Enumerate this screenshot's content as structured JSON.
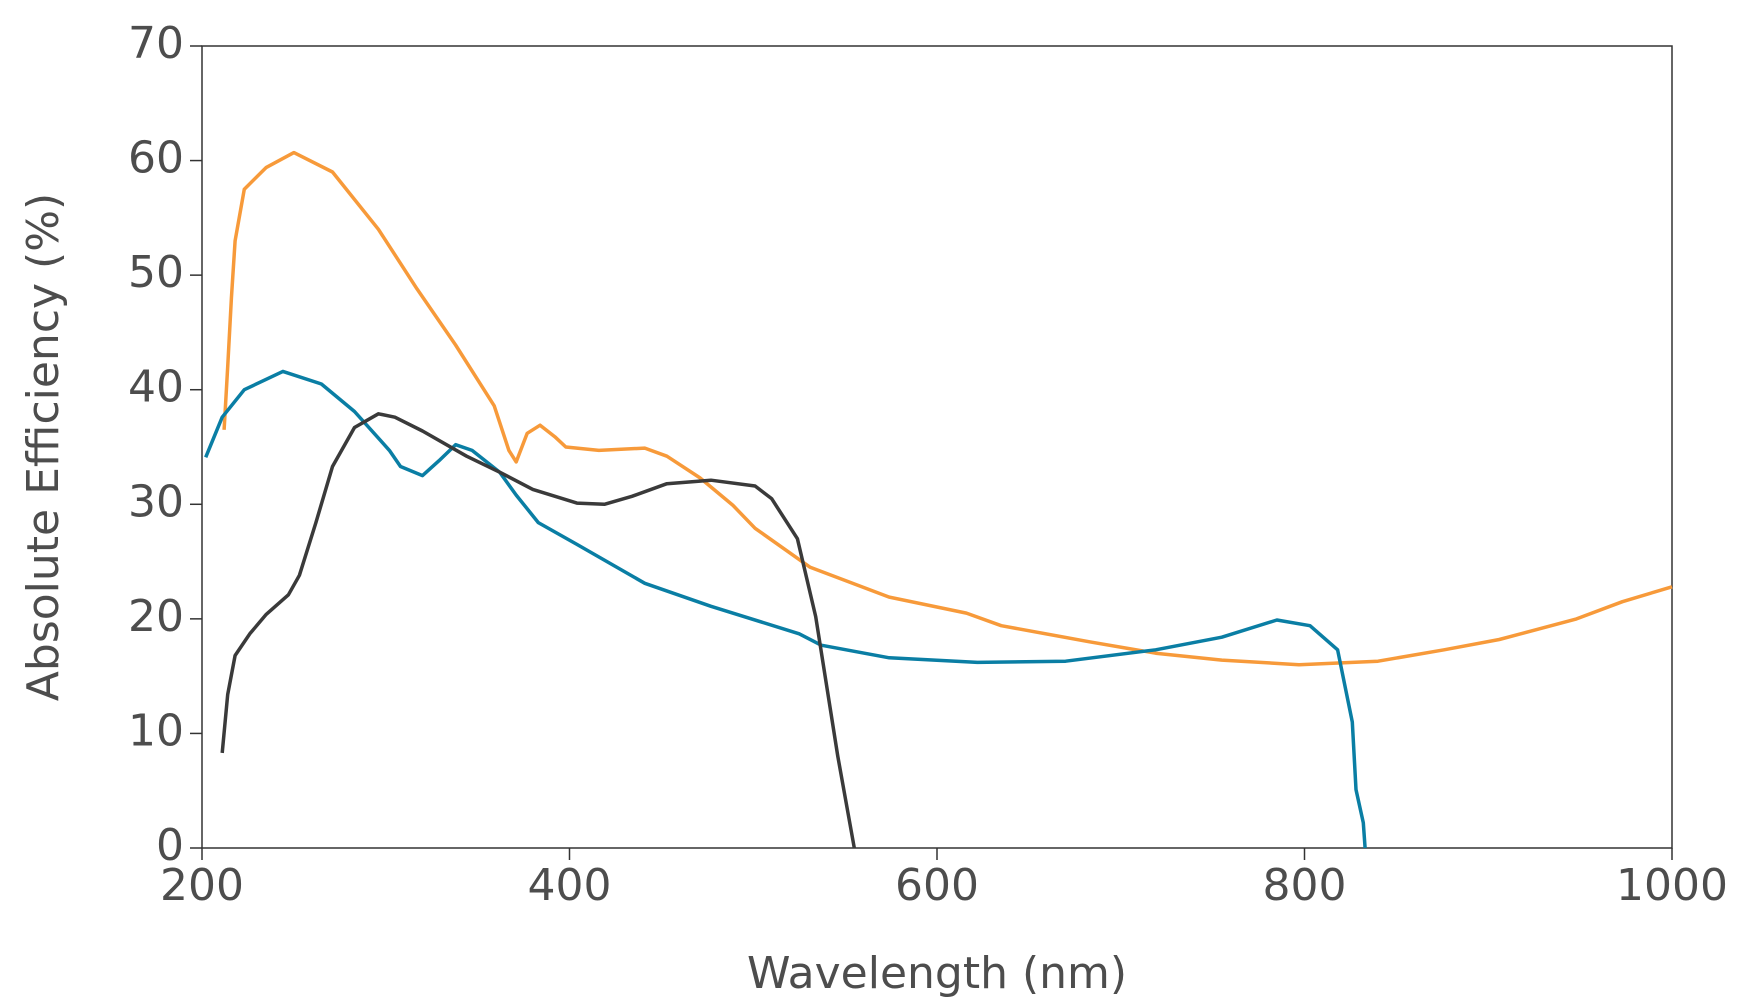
{
  "chart_data": {
    "type": "line",
    "x_label": "Wavelength (nm)",
    "y_label": "Absolute Efficiency (%)",
    "xlim": [
      200,
      1000
    ],
    "ylim": [
      0,
      70
    ],
    "xticks": [
      200,
      400,
      600,
      800,
      1000
    ],
    "yticks": [
      0,
      10,
      20,
      30,
      40,
      50,
      60,
      70
    ],
    "series": [
      {
        "color": "#f79a3a",
        "x": [
          212,
          214,
          216,
          218,
          223,
          235,
          250,
          271,
          296,
          317,
          338,
          359,
          367,
          371,
          377,
          384,
          392,
          398,
          416,
          441,
          453,
          471,
          489,
          501,
          531,
          574,
          616,
          635,
          683,
          719,
          755,
          797,
          840,
          876,
          906,
          948,
          973,
          1000
        ],
        "values": [
          36.5,
          42,
          48,
          53,
          57.5,
          59.4,
          60.7,
          59,
          54,
          48.8,
          43.9,
          38.6,
          34.7,
          33.7,
          36.2,
          36.9,
          35.9,
          35,
          34.7,
          34.9,
          34.2,
          32.3,
          29.9,
          27.9,
          24.5,
          21.9,
          20.5,
          19.4,
          18,
          17,
          16.4,
          16,
          16.3,
          17.3,
          18.2,
          20,
          21.5,
          22.8
        ]
      },
      {
        "color": "#0a7ea4",
        "x": [
          202,
          211,
          223,
          244,
          265,
          283,
          302,
          308,
          320,
          329,
          338,
          347,
          362,
          371,
          383,
          404,
          441,
          477,
          525,
          537,
          574,
          622,
          670,
          719,
          755,
          785,
          803,
          818,
          826,
          828,
          832,
          833
        ],
        "values": [
          34.1,
          37.6,
          40,
          41.6,
          40.5,
          38.1,
          34.7,
          33.3,
          32.5,
          33.8,
          35.2,
          34.7,
          32.8,
          30.8,
          28.4,
          26.5,
          23.1,
          21.1,
          18.7,
          17.7,
          16.6,
          16.2,
          16.3,
          17.3,
          18.4,
          19.9,
          19.4,
          17.3,
          11,
          5.1,
          2.2,
          0
        ]
      },
      {
        "color": "#3a3a3a",
        "x": [
          211,
          214,
          218,
          226,
          235,
          247,
          253,
          262,
          271,
          283,
          296,
          305,
          320,
          344,
          362,
          380,
          404,
          419,
          434,
          453,
          477,
          501,
          510,
          524,
          534,
          546,
          555
        ],
        "values": [
          8.3,
          13.4,
          16.8,
          18.7,
          20.4,
          22.1,
          23.8,
          28.4,
          33.3,
          36.7,
          37.9,
          37.6,
          36.4,
          34.2,
          32.8,
          31.3,
          30.1,
          30,
          30.7,
          31.8,
          32.1,
          31.6,
          30.5,
          27,
          20.2,
          8,
          0
        ]
      }
    ]
  }
}
